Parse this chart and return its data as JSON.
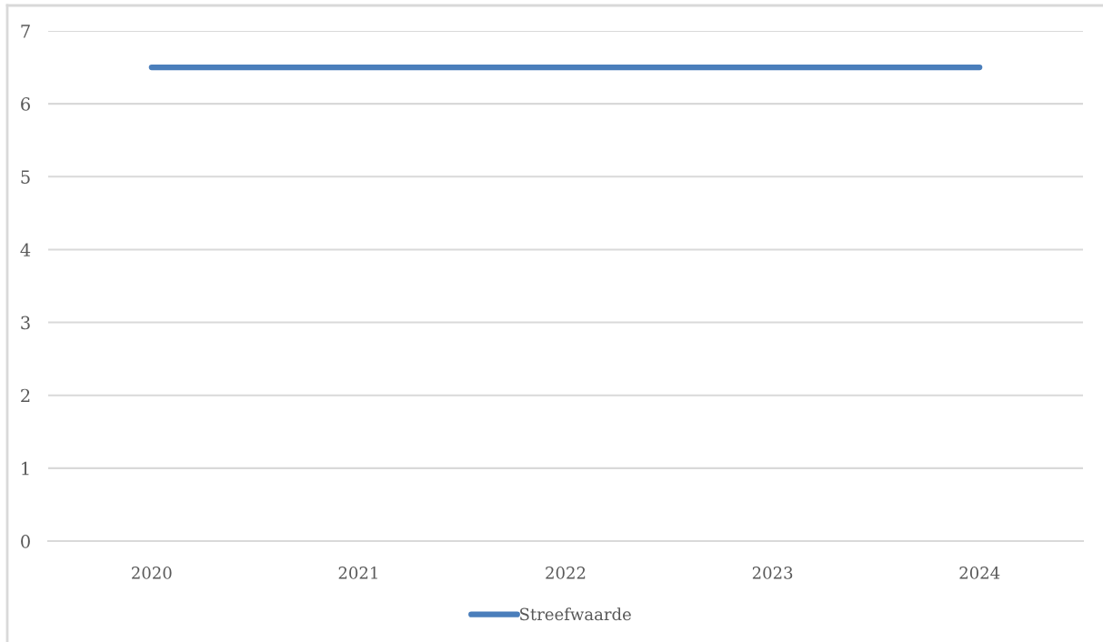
{
  "chart_data": {
    "type": "line",
    "categories": [
      "2020",
      "2021",
      "2022",
      "2023",
      "2024"
    ],
    "series": [
      {
        "name": "Streefwaarde",
        "color": "#4a7ebb",
        "values": [
          6.5,
          6.5,
          6.5,
          6.5,
          6.5
        ]
      }
    ],
    "ylim": [
      0,
      7
    ],
    "yticks": [
      0,
      1,
      2,
      3,
      4,
      5,
      6,
      7
    ],
    "grid": "y",
    "legend": "bottom",
    "line_style": "solid"
  }
}
